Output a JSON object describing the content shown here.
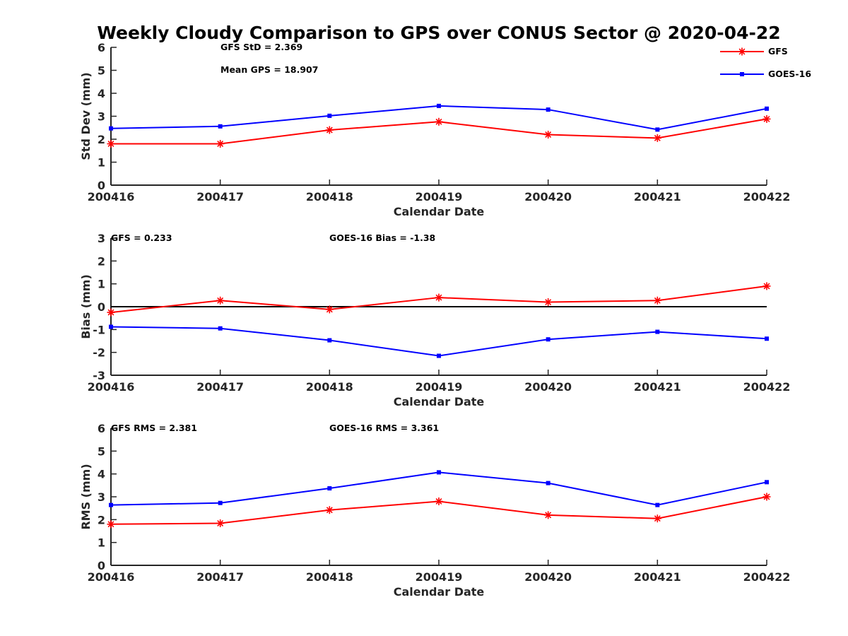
{
  "title": "Weekly Cloudy Comparison to GPS over CONUS Sector @ 2020-04-22",
  "colors": {
    "GFS": "#ff0000",
    "GOES-16": "#0000ff",
    "axis": "#262626",
    "zero_line": "#000000"
  },
  "chart_data": [
    {
      "type": "line",
      "categories": [
        "200416",
        "200417",
        "200418",
        "200419",
        "200420",
        "200421",
        "200422"
      ],
      "xlabel": "Calendar Date",
      "ylabel": "Std Dev (mm)",
      "ylim": [
        0,
        6
      ],
      "yticks": [
        0,
        1,
        2,
        3,
        4,
        5,
        6
      ],
      "grid": false,
      "legend": "top-right",
      "annotations": [
        "GFS StD = 2.369",
        "Mean GPS = 18.907"
      ],
      "series": [
        {
          "name": "GFS",
          "marker": "asterisk",
          "values": [
            1.8,
            1.8,
            2.4,
            2.76,
            2.2,
            2.05,
            2.88
          ]
        },
        {
          "name": "GOES-16",
          "marker": "square",
          "values": [
            2.47,
            2.56,
            3.02,
            3.45,
            3.29,
            2.42,
            3.33
          ]
        }
      ]
    },
    {
      "type": "line",
      "categories": [
        "200416",
        "200417",
        "200418",
        "200419",
        "200420",
        "200421",
        "200422"
      ],
      "xlabel": "Calendar Date",
      "ylabel": "Bias (mm)",
      "ylim": [
        -3,
        3
      ],
      "yticks": [
        -3,
        -2,
        -1,
        0,
        1,
        2,
        3
      ],
      "grid": false,
      "zero_line": true,
      "annotations": [
        "GFS = 0.233",
        "GOES-16 Bias  = -1.38"
      ],
      "series": [
        {
          "name": "GFS",
          "marker": "asterisk",
          "values": [
            -0.25,
            0.27,
            -0.12,
            0.4,
            0.2,
            0.27,
            0.9
          ]
        },
        {
          "name": "GOES-16",
          "marker": "square",
          "values": [
            -0.88,
            -0.95,
            -1.47,
            -2.15,
            -1.43,
            -1.1,
            -1.4
          ]
        }
      ]
    },
    {
      "type": "line",
      "categories": [
        "200416",
        "200417",
        "200418",
        "200419",
        "200420",
        "200421",
        "200422"
      ],
      "xlabel": "Calendar Date",
      "ylabel": "RMS (mm)",
      "ylim": [
        0,
        6
      ],
      "yticks": [
        0,
        1,
        2,
        3,
        4,
        5,
        6
      ],
      "grid": false,
      "annotations": [
        "GFS RMS = 2.381",
        "GOES-16 RMS = 3.361"
      ],
      "series": [
        {
          "name": "GFS",
          "marker": "asterisk",
          "values": [
            1.8,
            1.84,
            2.42,
            2.8,
            2.2,
            2.05,
            3.0
          ]
        },
        {
          "name": "GOES-16",
          "marker": "square",
          "values": [
            2.64,
            2.73,
            3.37,
            4.07,
            3.6,
            2.64,
            3.64
          ]
        }
      ]
    }
  ]
}
